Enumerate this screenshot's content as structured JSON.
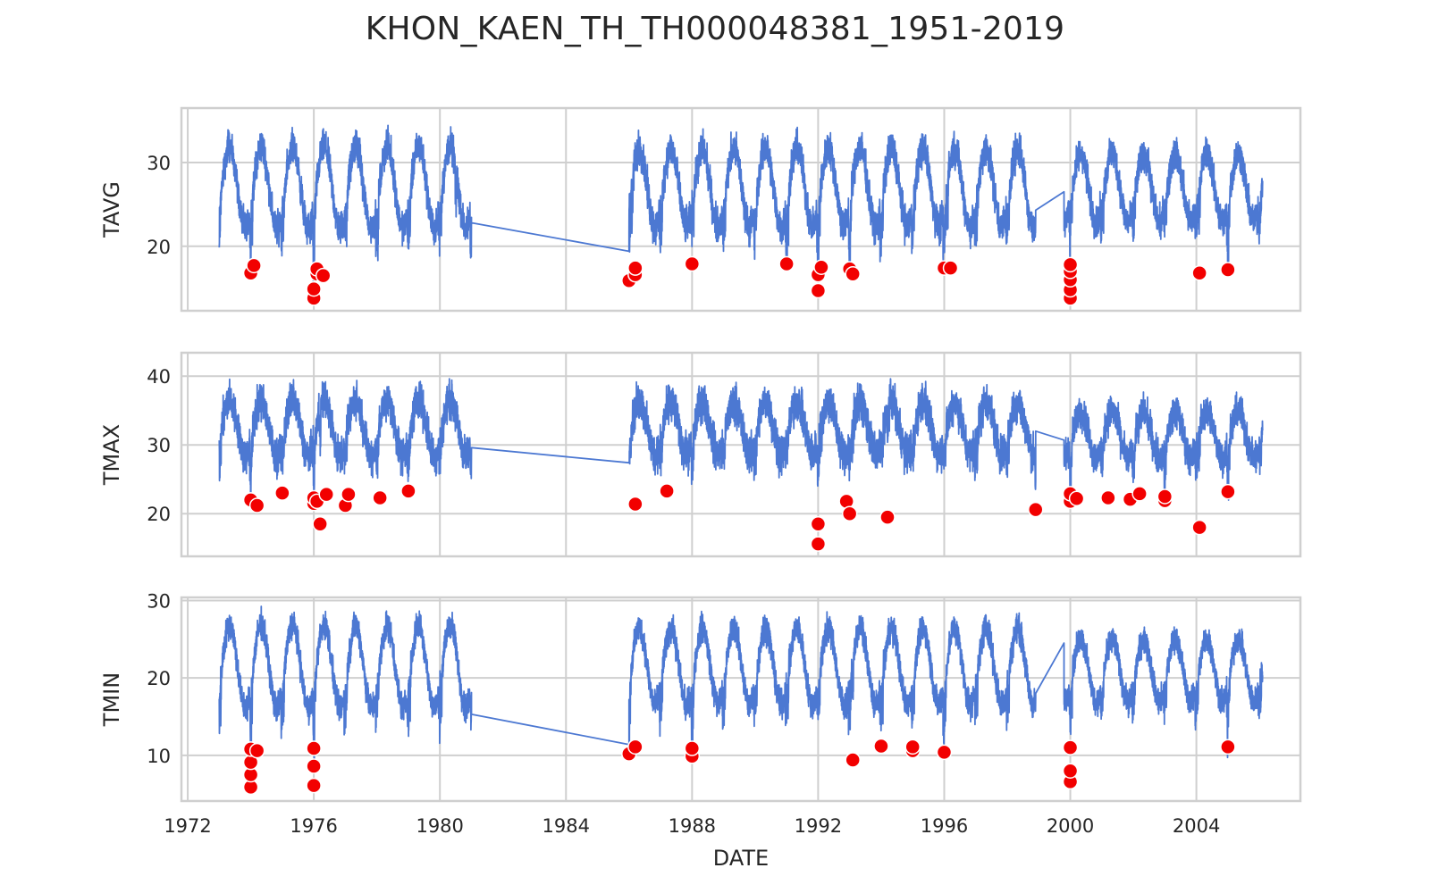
{
  "title": "KHON_KAEN_TH_TH000048381_1951-2019",
  "chart_data": [
    {
      "type": "line",
      "ylabel": "TAVG",
      "xlabel": "",
      "xlim": [
        1971.8,
        2007.3
      ],
      "ylim": [
        12.3,
        36.5
      ],
      "x_ticks": [
        1972,
        1976,
        1980,
        1984,
        1988,
        1992,
        1996,
        2000,
        2004
      ],
      "y_ticks": [
        20,
        30
      ],
      "grid": true,
      "line_color": "#4c78d2",
      "marker_color": "#f20000",
      "series": [
        {
          "segments": [
            {
              "x": [
                1973.0,
                1981.0
              ],
              "mean": 27,
              "amp": 5.5,
              "noise": 1.6,
              "dips": [
                1974.0,
                1976.0,
                1980.5
              ]
            },
            {
              "x": [
                1981.0,
                1986.0
              ],
              "line": [
                [
                  1981.0,
                  22.8
                ],
                [
                  1986.0,
                  19.4
                ]
              ]
            },
            {
              "x": [
                1986.0,
                1998.9
              ],
              "mean": 27,
              "amp": 5.2,
              "noise": 1.7,
              "dips": [
                1986.1,
                1992.0,
                1993.0,
                1996.1
              ]
            },
            {
              "x": [
                1998.9,
                1999.8
              ],
              "line": [
                [
                  1998.9,
                  24.3
                ],
                [
                  1999.8,
                  26.5
                ]
              ]
            },
            {
              "x": [
                1999.8,
                2006.1
              ],
              "mean": 27,
              "amp": 4.5,
              "noise": 1.6,
              "dips": [
                2000.0,
                2004.1,
                2005.0
              ]
            }
          ]
        }
      ],
      "points": [
        [
          1974.0,
          16.8
        ],
        [
          1974.1,
          17.7
        ],
        [
          1976.0,
          13.8
        ],
        [
          1976.0,
          14.9
        ],
        [
          1976.1,
          16.7
        ],
        [
          1976.1,
          17.3
        ],
        [
          1976.3,
          16.5
        ],
        [
          1986.0,
          15.9
        ],
        [
          1986.2,
          16.6
        ],
        [
          1986.2,
          17.4
        ],
        [
          1988.0,
          17.9
        ],
        [
          1991.0,
          17.9
        ],
        [
          1992.0,
          14.7
        ],
        [
          1992.0,
          16.6
        ],
        [
          1992.1,
          17.5
        ],
        [
          1993.0,
          17.3
        ],
        [
          1993.1,
          16.7
        ],
        [
          1996.0,
          17.4
        ],
        [
          1996.2,
          17.4
        ],
        [
          2000.0,
          13.8
        ],
        [
          2000.0,
          14.8
        ],
        [
          2000.0,
          16.0
        ],
        [
          2000.0,
          17.0
        ],
        [
          2000.0,
          17.8
        ],
        [
          2004.1,
          16.8
        ],
        [
          2005.0,
          17.2
        ]
      ]
    },
    {
      "type": "line",
      "ylabel": "TMAX",
      "xlabel": "",
      "xlim": [
        1971.8,
        2007.3
      ],
      "ylim": [
        13.8,
        43.4
      ],
      "x_ticks": [
        1972,
        1976,
        1980,
        1984,
        1988,
        1992,
        1996,
        2000,
        2004
      ],
      "y_ticks": [
        20,
        30,
        40
      ],
      "grid": true,
      "line_color": "#4c78d2",
      "marker_color": "#f20000",
      "series": [
        {
          "segments": [
            {
              "x": [
                1973.0,
                1981.0
              ],
              "mean": 32.5,
              "amp": 4.5,
              "noise": 2.2,
              "dips": [
                1974.0,
                1976.0,
                1976.2
              ]
            },
            {
              "x": [
                1981.0,
                1986.0
              ],
              "line": [
                [
                  1981.0,
                  29.6
                ],
                [
                  1986.0,
                  27.4
                ]
              ]
            },
            {
              "x": [
                1986.0,
                1998.9
              ],
              "mean": 32.5,
              "amp": 4.2,
              "noise": 2.3,
              "dips": [
                1988.0,
                1992.0,
                1992.1,
                1993.1,
                1994.2,
                1998.9
              ]
            },
            {
              "x": [
                1998.9,
                1999.8
              ],
              "line": [
                [
                  1998.9,
                  32.0
                ],
                [
                  1999.8,
                  30.7
                ]
              ]
            },
            {
              "x": [
                1999.8,
                2006.1
              ],
              "mean": 31.5,
              "amp": 3.8,
              "noise": 2.0,
              "dips": [
                2000.0,
                2002.0,
                2003.0,
                2004.1,
                2005.0
              ]
            }
          ]
        }
      ],
      "points": [
        [
          1974.0,
          22.0
        ],
        [
          1974.2,
          21.2
        ],
        [
          1975.0,
          23.0
        ],
        [
          1976.0,
          21.5
        ],
        [
          1976.0,
          22.3
        ],
        [
          1976.1,
          21.8
        ],
        [
          1976.2,
          18.5
        ],
        [
          1976.4,
          22.8
        ],
        [
          1977.0,
          21.2
        ],
        [
          1977.1,
          22.8
        ],
        [
          1978.1,
          22.3
        ],
        [
          1979.0,
          23.3
        ],
        [
          1986.2,
          21.4
        ],
        [
          1987.2,
          23.3
        ],
        [
          1992.0,
          15.6
        ],
        [
          1992.0,
          18.5
        ],
        [
          1992.9,
          21.8
        ],
        [
          1993.0,
          20.0
        ],
        [
          1994.2,
          19.5
        ],
        [
          1998.9,
          20.6
        ],
        [
          2000.0,
          21.8
        ],
        [
          2000.0,
          22.9
        ],
        [
          2000.2,
          22.2
        ],
        [
          2001.2,
          22.3
        ],
        [
          2001.9,
          22.1
        ],
        [
          2002.2,
          22.9
        ],
        [
          2003.0,
          21.9
        ],
        [
          2003.0,
          22.5
        ],
        [
          2004.1,
          18.0
        ],
        [
          2005.0,
          23.2
        ]
      ]
    },
    {
      "type": "line",
      "ylabel": "TMIN",
      "xlabel": "DATE",
      "xlim": [
        1971.8,
        2007.3
      ],
      "ylim": [
        4.1,
        30.4
      ],
      "x_ticks": [
        1972,
        1976,
        1980,
        1984,
        1988,
        1992,
        1996,
        2000,
        2004
      ],
      "y_ticks": [
        10,
        20,
        30
      ],
      "grid": true,
      "line_color": "#4c78d2",
      "marker_color": "#f20000",
      "series": [
        {
          "segments": [
            {
              "x": [
                1973.0,
                1981.0
              ],
              "mean": 21.5,
              "amp": 6.0,
              "noise": 1.5,
              "dips": [
                1974.0,
                1976.0
              ]
            },
            {
              "x": [
                1981.0,
                1986.0
              ],
              "line": [
                [
                  1981.0,
                  15.3
                ],
                [
                  1986.0,
                  11.4
                ]
              ]
            },
            {
              "x": [
                1986.0,
                1998.9
              ],
              "mean": 21.5,
              "amp": 5.5,
              "noise": 1.5,
              "dips": [
                1986.0,
                1988.0,
                1993.1,
                1996.0
              ]
            },
            {
              "x": [
                1998.9,
                1999.8
              ],
              "line": [
                [
                  1998.9,
                  18.0
                ],
                [
                  1999.8,
                  24.5
                ]
              ]
            },
            {
              "x": [
                1999.8,
                2006.1
              ],
              "mean": 21.0,
              "amp": 4.5,
              "noise": 1.4,
              "dips": [
                2000.0,
                2005.0
              ]
            }
          ]
        }
      ],
      "points": [
        [
          1974.0,
          5.9
        ],
        [
          1974.0,
          7.5
        ],
        [
          1974.0,
          9.1
        ],
        [
          1974.0,
          10.8
        ],
        [
          1974.2,
          10.6
        ],
        [
          1976.0,
          6.1
        ],
        [
          1976.0,
          8.6
        ],
        [
          1976.0,
          10.9
        ],
        [
          1986.0,
          10.2
        ],
        [
          1986.2,
          11.1
        ],
        [
          1988.0,
          9.9
        ],
        [
          1988.0,
          10.9
        ],
        [
          1993.1,
          9.4
        ],
        [
          1994.0,
          11.2
        ],
        [
          1995.0,
          10.6
        ],
        [
          1995.0,
          11.1
        ],
        [
          1996.0,
          10.4
        ],
        [
          2000.0,
          6.6
        ],
        [
          2000.0,
          8.0
        ],
        [
          2000.0,
          11.0
        ],
        [
          2005.0,
          11.1
        ]
      ]
    }
  ]
}
